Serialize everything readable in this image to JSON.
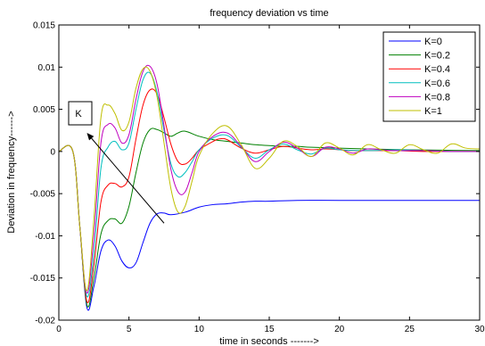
{
  "chart_data": {
    "type": "line",
    "title": "frequency deviation vs time",
    "xlabel": "time in seconds ------->",
    "ylabel": "Deviation in frequency------>",
    "xlim": [
      0,
      30
    ],
    "ylim": [
      -0.02,
      0.015
    ],
    "xticks": [
      0,
      5,
      10,
      15,
      20,
      25,
      30
    ],
    "yticks": [
      -0.02,
      -0.015,
      -0.01,
      -0.005,
      0,
      0.005,
      0.01,
      0.015
    ],
    "xtick_labels": [
      "0",
      "5",
      "10",
      "15",
      "20",
      "25",
      "30"
    ],
    "ytick_labels": [
      "-0.02",
      "-0.015",
      "-0.01",
      "-0.005",
      "0",
      "0.005",
      "0.01",
      "0.015"
    ],
    "grid": false,
    "legend_position": "top-right",
    "annotation": {
      "label": "K",
      "arrow_from": [
        7.5,
        -0.0085
      ],
      "arrow_to": [
        2.0,
        0.0022
      ]
    },
    "series": [
      {
        "name": "K=0",
        "color": "#0000ff",
        "x": [
          0,
          1,
          1.5,
          2.0,
          2.5,
          3.0,
          3.5,
          4.0,
          4.5,
          5.0,
          5.5,
          6.0,
          6.5,
          7.0,
          7.5,
          8.0,
          9.0,
          10.0,
          11.0,
          12.0,
          13.0,
          14.0,
          15.0,
          17.0,
          20.0,
          25.0,
          30.0
        ],
        "y": [
          0,
          0,
          -0.009,
          -0.0185,
          -0.016,
          -0.0118,
          -0.0105,
          -0.0112,
          -0.013,
          -0.0138,
          -0.0132,
          -0.0108,
          -0.0085,
          -0.0074,
          -0.0073,
          -0.0075,
          -0.0072,
          -0.0066,
          -0.0063,
          -0.0062,
          -0.006,
          -0.0059,
          -0.0059,
          -0.0058,
          -0.0058,
          -0.0058,
          -0.0058
        ]
      },
      {
        "name": "K=0.2",
        "color": "#008000",
        "x": [
          0,
          1,
          1.5,
          2.0,
          2.5,
          3.0,
          3.5,
          4.0,
          4.5,
          5.0,
          5.5,
          6.0,
          6.5,
          7.0,
          7.5,
          8.0,
          8.5,
          9.0,
          10.0,
          11.0,
          12.0,
          13.0,
          14.0,
          15.0,
          16.0,
          17.0,
          18.0,
          20.0,
          22.0,
          25.0,
          30.0
        ],
        "y": [
          0,
          0,
          -0.009,
          -0.0182,
          -0.015,
          -0.0098,
          -0.0082,
          -0.008,
          -0.0085,
          -0.0065,
          -0.0025,
          0.001,
          0.0026,
          0.0026,
          0.0022,
          0.0018,
          0.0022,
          0.0024,
          0.0018,
          0.0014,
          0.0012,
          0.001,
          0.0008,
          0.0007,
          0.0006,
          0.0006,
          0.0005,
          0.0004,
          0.0003,
          0.0002,
          0.0001
        ]
      },
      {
        "name": "K=0.4",
        "color": "#ff0000",
        "x": [
          0,
          1,
          1.5,
          2.0,
          2.5,
          3.0,
          3.5,
          4.0,
          4.5,
          5.0,
          5.5,
          6.0,
          6.5,
          7.0,
          7.5,
          8.0,
          8.5,
          9.0,
          9.5,
          10.0,
          11.0,
          11.5,
          12.0,
          13.0,
          14.0,
          15.0,
          16.0,
          17.0,
          18.0,
          19.0,
          20.0,
          21.0,
          22.0,
          24.0,
          26.0,
          30.0
        ],
        "y": [
          0,
          0,
          -0.009,
          -0.0178,
          -0.0135,
          -0.006,
          -0.004,
          -0.0038,
          -0.0042,
          -0.003,
          0.0015,
          0.0055,
          0.0073,
          0.0068,
          0.004,
          0.0008,
          -0.0012,
          -0.0015,
          -0.0008,
          0.0002,
          0.0012,
          0.0015,
          0.0014,
          0.0004,
          -0.0002,
          0.0002,
          0.0006,
          0.0004,
          0.0002,
          0.0003,
          0.0002,
          0.0001,
          0.0001,
          0.0001,
          0.0,
          0.0
        ]
      },
      {
        "name": "K=0.6",
        "color": "#00bfbf",
        "x": [
          0,
          1,
          1.5,
          2.0,
          2.5,
          3.0,
          3.5,
          4.0,
          4.5,
          5.0,
          5.5,
          6.0,
          6.5,
          7.0,
          7.5,
          8.0,
          8.5,
          9.0,
          9.5,
          10.0,
          11.0,
          12.0,
          13.0,
          14.0,
          15.0,
          16.0,
          17.0,
          18.0,
          19.0,
          20.0,
          22.0,
          24.0,
          26.0,
          28.0,
          30.0
        ],
        "y": [
          0,
          0,
          -0.009,
          -0.0172,
          -0.012,
          -0.002,
          0.0005,
          0.0012,
          0.0002,
          0.001,
          0.005,
          0.0085,
          0.0093,
          0.007,
          0.0025,
          -0.0015,
          -0.003,
          -0.0025,
          -0.0012,
          0.0002,
          0.0016,
          0.0019,
          0.0005,
          -0.0008,
          0.0002,
          0.0009,
          0.0002,
          -0.0003,
          0.0004,
          0.0002,
          0.0001,
          0.0002,
          0.0001,
          0.0,
          0.0
        ]
      },
      {
        "name": "K=0.8",
        "color": "#bf00bf",
        "x": [
          0,
          1,
          1.5,
          2.0,
          2.5,
          3.0,
          3.5,
          4.0,
          4.5,
          5.0,
          5.5,
          6.0,
          6.5,
          7.0,
          7.5,
          8.0,
          8.5,
          9.0,
          9.5,
          10.0,
          11.0,
          12.0,
          13.0,
          14.0,
          15.0,
          16.0,
          17.0,
          18.0,
          19.0,
          20.0,
          21.0,
          22.0,
          23.0,
          24.0,
          26.0,
          28.0,
          30.0
        ],
        "y": [
          0,
          0,
          -0.009,
          -0.0168,
          -0.01,
          0.001,
          0.0032,
          0.0028,
          0.001,
          0.002,
          0.0062,
          0.0095,
          0.0101,
          0.008,
          0.003,
          -0.0022,
          -0.0048,
          -0.0048,
          -0.0025,
          0.0,
          0.0018,
          0.0022,
          0.0006,
          -0.0012,
          0.0,
          0.0011,
          0.0004,
          -0.0006,
          0.0005,
          0.0003,
          -0.0002,
          0.0003,
          0.0002,
          0.0001,
          0.0001,
          0.0,
          0.0
        ]
      },
      {
        "name": "K=1",
        "color": "#bfbf00",
        "x": [
          0,
          1,
          1.5,
          2.0,
          2.5,
          3.0,
          3.5,
          4.0,
          4.5,
          5.0,
          5.5,
          6.0,
          6.5,
          7.0,
          7.5,
          8.0,
          8.5,
          9.0,
          9.5,
          10.0,
          11.0,
          12.0,
          13.0,
          14.0,
          15.0,
          16.0,
          17.0,
          18.0,
          19.0,
          20.0,
          21.0,
          22.0,
          23.0,
          24.0,
          25.0,
          26.0,
          27.0,
          28.0,
          29.0,
          30.0
        ],
        "y": [
          0,
          0,
          -0.009,
          -0.0165,
          -0.008,
          0.004,
          0.0055,
          0.0045,
          0.0025,
          0.0035,
          0.0075,
          0.0098,
          0.0095,
          0.0065,
          0.001,
          -0.0045,
          -0.0072,
          -0.0065,
          -0.0035,
          -0.0005,
          0.0022,
          0.003,
          0.0008,
          -0.002,
          -0.0008,
          0.0012,
          0.0006,
          -0.0006,
          0.001,
          0.0004,
          -0.0004,
          0.0008,
          0.0002,
          -0.0002,
          0.0008,
          0.0002,
          -0.0002,
          0.0009,
          0.0004,
          0.0003
        ]
      }
    ]
  }
}
